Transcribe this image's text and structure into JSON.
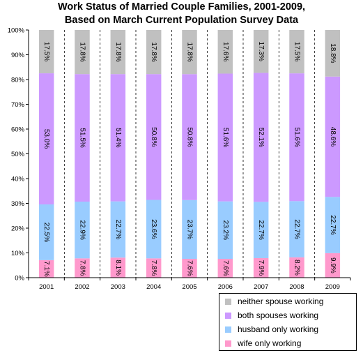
{
  "chart_data": {
    "type": "bar",
    "stacked": true,
    "percent_stacked": true,
    "title_line1": "Work Status of Married Couple Families, 2001-2009,",
    "title_line2": "Based on March Current Population Survey Data",
    "categories": [
      "2001",
      "2002",
      "2003",
      "2004",
      "2005",
      "2006",
      "2007",
      "2008",
      "2009"
    ],
    "series": [
      {
        "name": "wife only working",
        "color": "#ff99cc",
        "values": [
          7.1,
          7.8,
          8.1,
          7.8,
          7.6,
          7.6,
          7.9,
          8.2,
          9.9
        ],
        "labels": [
          "7.1%",
          "7.8%",
          "8.1%",
          "7.8%",
          "7.6%",
          "7.6%",
          "7.9%",
          "8.2%",
          "9.9%"
        ]
      },
      {
        "name": "husband only working",
        "color": "#99ccff",
        "values": [
          22.5,
          22.9,
          22.7,
          23.6,
          23.7,
          23.2,
          22.7,
          22.7,
          22.7
        ],
        "labels": [
          "22.5%",
          "22.9%",
          "22.7%",
          "23.6%",
          "23.7%",
          "23.2%",
          "22.7%",
          "22.7%",
          "22.7%"
        ]
      },
      {
        "name": "both spouses working",
        "color": "#cc99ff",
        "values": [
          53.0,
          51.5,
          51.4,
          50.8,
          50.8,
          51.6,
          52.1,
          51.6,
          48.6
        ],
        "labels": [
          "53.0%",
          "51.5%",
          "51.4%",
          "50.8%",
          "50.8%",
          "51.6%",
          "52.1%",
          "51.6%",
          "48.6%"
        ]
      },
      {
        "name": "neither spouse working",
        "color": "#c0c0c0",
        "values": [
          17.5,
          17.8,
          17.8,
          17.8,
          17.8,
          17.6,
          17.3,
          17.5,
          18.8
        ],
        "labels": [
          "17.5%",
          "17.8%",
          "17.8%",
          "17.8%",
          "17.8%",
          "17.6%",
          "17.3%",
          "17.5%",
          "18.8%"
        ]
      }
    ],
    "y_ticks": [
      "0%",
      "10%",
      "20%",
      "30%",
      "40%",
      "50%",
      "60%",
      "70%",
      "80%",
      "90%",
      "100%"
    ],
    "ylim": [
      0,
      100
    ],
    "grid": "vertical dashed lines between categories",
    "legend_position": "bottom-right",
    "legend_order": [
      "neither spouse working",
      "both spouses working",
      "husband only working",
      "wife only working"
    ]
  }
}
